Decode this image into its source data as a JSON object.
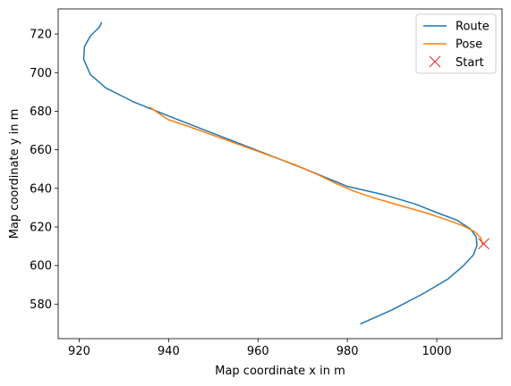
{
  "chart_data": {
    "type": "line",
    "xlabel": "Map coordinate x in m",
    "ylabel": "Map coordinate y in m",
    "xlim": [
      915.3,
      1014.6
    ],
    "ylim": [
      562.1,
      733.0
    ],
    "xticks": [
      920,
      940,
      960,
      980,
      1000
    ],
    "yticks": [
      580,
      600,
      620,
      640,
      660,
      680,
      700,
      720
    ],
    "xtick_labels": [
      "920",
      "940",
      "960",
      "980",
      "1000"
    ],
    "ytick_labels": [
      "580",
      "600",
      "620",
      "640",
      "660",
      "680",
      "700",
      "720"
    ],
    "grid": false,
    "legend_position": "upper right",
    "series": [
      {
        "name": "Route",
        "kind": "line",
        "color": "#1f77b4",
        "x": [
          983.0,
          990.0,
          997.0,
          1002.5,
          1006.0,
          1008.2,
          1009.0,
          1008.8,
          1007.5,
          1004.5,
          1000.5,
          995.0,
          988.0,
          980.0,
          970.0,
          960.0,
          950.0,
          940.0,
          932.0,
          926.0,
          922.5,
          921.0,
          921.2,
          922.5,
          924.5,
          925.0
        ],
        "y": [
          569.8,
          577.0,
          585.5,
          593.0,
          600.0,
          605.5,
          610.5,
          615.0,
          619.0,
          623.5,
          627.0,
          632.0,
          636.8,
          641.0,
          650.5,
          659.5,
          668.5,
          677.5,
          685.0,
          692.0,
          699.0,
          707.0,
          713.5,
          719.0,
          723.5,
          725.8
        ]
      },
      {
        "name": "Pose",
        "kind": "line",
        "color": "#ff7f0e",
        "x": [
          1010.2,
          1009.8,
          1008.5,
          1006.0,
          1002.5,
          998.0,
          992.0,
          986.0,
          981.5,
          977.5,
          973.5,
          968.0,
          962.0,
          956.0,
          950.0,
          944.0,
          940.0,
          935.8
        ],
        "y": [
          611.3,
          614.5,
          617.5,
          620.5,
          623.5,
          627.0,
          631.0,
          635.0,
          638.5,
          642.5,
          647.0,
          652.5,
          657.5,
          662.5,
          667.5,
          672.5,
          675.5,
          682.0
        ]
      },
      {
        "name": "Start",
        "kind": "marker",
        "marker": "x",
        "color": "#d62728",
        "x": [
          1010.5
        ],
        "y": [
          611.3
        ]
      }
    ]
  }
}
